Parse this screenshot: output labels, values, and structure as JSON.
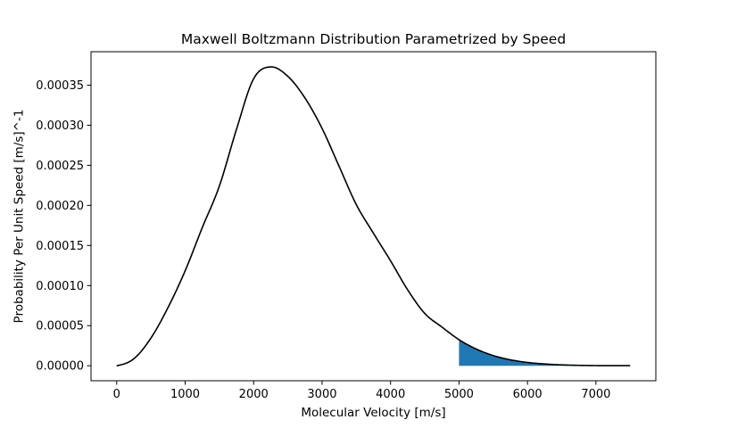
{
  "chart_data": {
    "type": "line",
    "title": "Maxwell Boltzmann Distribution Parametrized by Speed",
    "xlabel": "Molecular Velocity [m/s]",
    "ylabel": "Probability Per Unit Speed [m/s]^-1",
    "xlim": [
      -375,
      7875
    ],
    "ylim": [
      -1.87e-05,
      0.0003917
    ],
    "xticks": [
      0,
      1000,
      2000,
      3000,
      4000,
      5000,
      6000,
      7000
    ],
    "xtick_labels": [
      "0",
      "1000",
      "2000",
      "3000",
      "4000",
      "5000",
      "6000",
      "7000"
    ],
    "yticks": [
      0,
      5e-05,
      0.0001,
      0.00015,
      0.0002,
      0.00025,
      0.0003,
      0.00035
    ],
    "ytick_labels": [
      "0.00000",
      "0.00005",
      "0.00010",
      "0.00015",
      "0.00020",
      "0.00025",
      "0.00030",
      "0.00035"
    ],
    "grid": false,
    "series": [
      {
        "color": "#000000",
        "x": [
          0,
          250,
          500,
          750,
          1000,
          1250,
          1500,
          1750,
          2000,
          2250,
          2500,
          2750,
          3000,
          3250,
          3500,
          3750,
          4000,
          4250,
          4500,
          4750,
          5000,
          5250,
          5500,
          5750,
          6000,
          6250,
          6500,
          6750,
          7000,
          7250,
          7500
        ],
        "y": [
          0,
          8.7e-06,
          3.45e-05,
          7.27e-05,
          0.0001184,
          0.0001723,
          0.0002242,
          0.000295,
          0.000358,
          0.0003728,
          0.000361,
          0.000334,
          0.000296,
          0.0002485,
          0.000201,
          0.0001653,
          0.0001309,
          9.47e-05,
          6.52e-05,
          4.83e-05,
          3.25e-05,
          2.09e-05,
          1.27e-05,
          7.4e-06,
          4.1e-06,
          2.2e-06,
          1.1e-06,
          5e-07,
          2e-07,
          1e-07,
          1e-07
        ]
      }
    ],
    "fill": {
      "color": "#1f77b4",
      "x_from": 5000,
      "x_to": 7500
    }
  }
}
